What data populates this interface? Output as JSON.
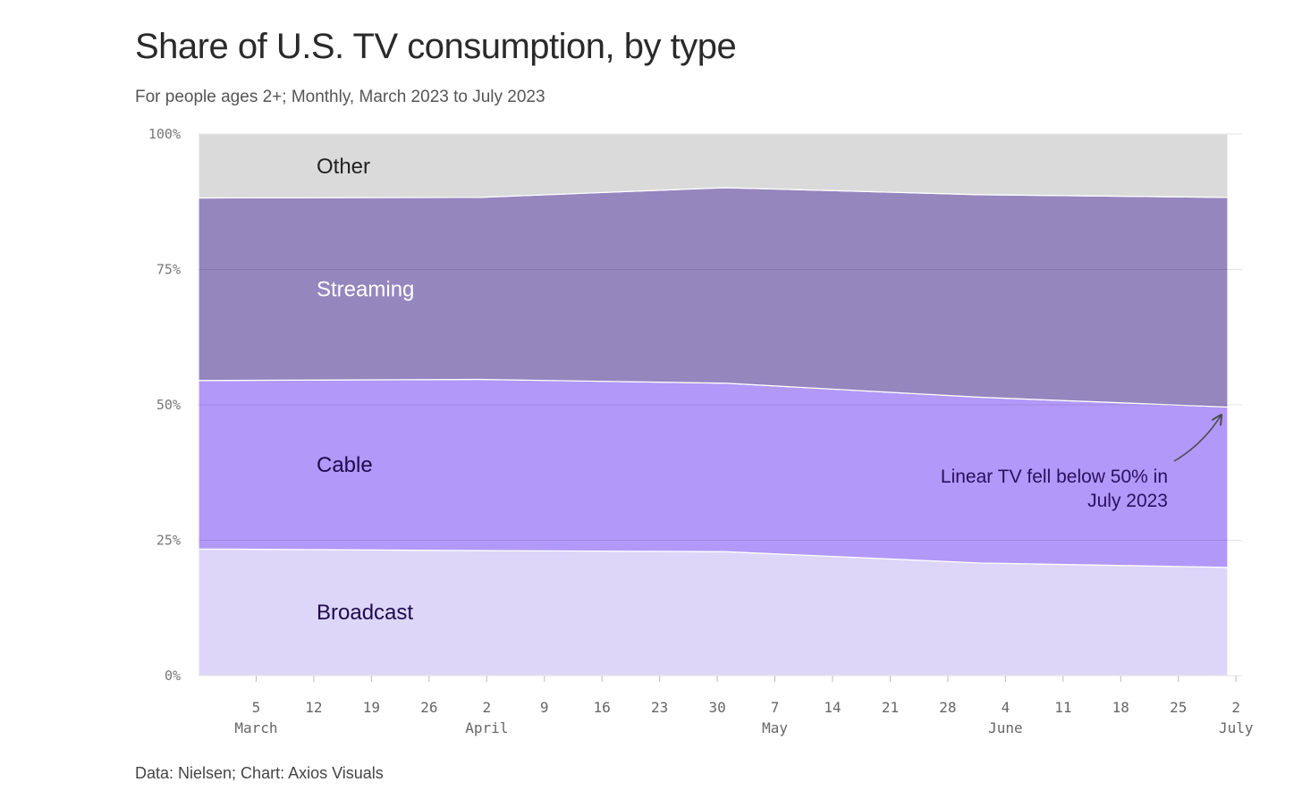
{
  "title": "Share of U.S. TV consumption, by type",
  "subtitle": "For people ages 2+; Monthly, March 2023 to July 2023",
  "source": "Data: Nielsen; Chart: Axios Visuals",
  "chart_data": {
    "type": "area",
    "stacked": true,
    "x": [
      "2023-03-01",
      "2023-04-01",
      "2023-05-01",
      "2023-06-01",
      "2023-07-01"
    ],
    "series": [
      {
        "name": "Broadcast",
        "values": [
          23.4,
          23.1,
          22.9,
          20.8,
          20.0
        ],
        "color": "#ddd6f8",
        "label_color": "#1e0a4e"
      },
      {
        "name": "Cable",
        "values": [
          31.1,
          31.6,
          31.1,
          30.6,
          29.6
        ],
        "color": "#b298f8",
        "label_color": "#1e0a4e"
      },
      {
        "name": "Streaming",
        "values": [
          33.7,
          33.6,
          36.1,
          37.4,
          38.7
        ],
        "color": "#9686be",
        "label_color": "#ffffff"
      },
      {
        "name": "Other",
        "values": [
          11.8,
          11.7,
          9.9,
          11.2,
          11.7
        ],
        "color": "#dadada",
        "label_color": "#222222"
      }
    ],
    "ylim": [
      0,
      100
    ],
    "yticks": [
      {
        "value": 0,
        "label": "0%"
      },
      {
        "value": 25,
        "label": "25%"
      },
      {
        "value": 50,
        "label": "50%"
      },
      {
        "value": 75,
        "label": "75%"
      },
      {
        "value": 100,
        "label": "100%"
      }
    ],
    "xlim": [
      "2023-02-26",
      "2023-07-01"
    ],
    "xticks": [
      {
        "date": "2023-03-05",
        "label": "5",
        "month": "March"
      },
      {
        "date": "2023-03-12",
        "label": "12"
      },
      {
        "date": "2023-03-19",
        "label": "19"
      },
      {
        "date": "2023-03-26",
        "label": "26"
      },
      {
        "date": "2023-04-02",
        "label": "2",
        "month": "April"
      },
      {
        "date": "2023-04-09",
        "label": "9"
      },
      {
        "date": "2023-04-16",
        "label": "16"
      },
      {
        "date": "2023-04-23",
        "label": "23"
      },
      {
        "date": "2023-04-30",
        "label": "30"
      },
      {
        "date": "2023-05-07",
        "label": "7",
        "month": "May"
      },
      {
        "date": "2023-05-14",
        "label": "14"
      },
      {
        "date": "2023-05-21",
        "label": "21"
      },
      {
        "date": "2023-05-28",
        "label": "28"
      },
      {
        "date": "2023-06-04",
        "label": "4",
        "month": "June"
      },
      {
        "date": "2023-06-11",
        "label": "11"
      },
      {
        "date": "2023-06-18",
        "label": "18"
      },
      {
        "date": "2023-06-25",
        "label": "25"
      },
      {
        "date": "2023-07-02",
        "label": "2",
        "month": "July"
      }
    ],
    "annotation": {
      "lines": [
        "Linear TV fell below 50% in",
        "July 2023"
      ],
      "target_date": "2023-07-01",
      "target_value": 49.6
    },
    "grid": true
  }
}
